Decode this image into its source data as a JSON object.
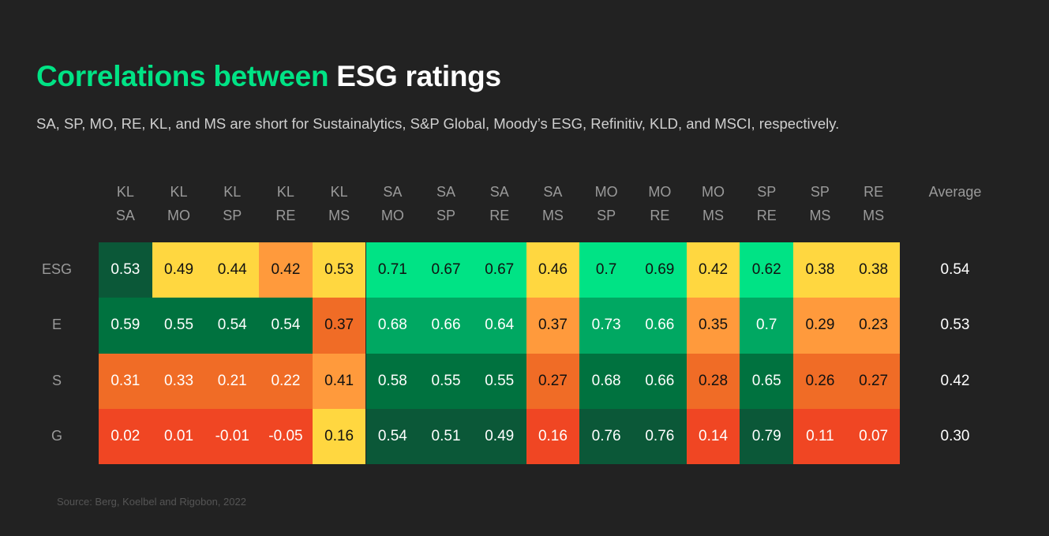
{
  "title": {
    "green_part": "Correlations between",
    "white_part": "ESG ratings"
  },
  "subtitle": "SA, SP, MO, RE, KL, and MS are short for Sustainalytics, S&P Global, Moody’s ESG, Refinitiv, KLD, and MSCI, respectively.",
  "source": "Source: Berg, Koelbel and Rigobon, 2022",
  "colors": {
    "background": "#222222",
    "accent": "#00e385",
    "dk": "#0b5838",
    "md": "#00723f",
    "gr": "#00a862",
    "br": "#00e385",
    "y": "#ffd740",
    "lo": "#ff9a3c",
    "or": "#f06c26",
    "red": "#f04623"
  },
  "chart_data": {
    "type": "heatmap",
    "title": "Correlations between ESG ratings",
    "columns": [
      [
        "KL",
        "SA"
      ],
      [
        "KL",
        "MO"
      ],
      [
        "KL",
        "SP"
      ],
      [
        "KL",
        "RE"
      ],
      [
        "KL",
        "MS"
      ],
      [
        "SA",
        "MO"
      ],
      [
        "SA",
        "SP"
      ],
      [
        "SA",
        "RE"
      ],
      [
        "SA",
        "MS"
      ],
      [
        "MO",
        "SP"
      ],
      [
        "MO",
        "RE"
      ],
      [
        "MO",
        "MS"
      ],
      [
        "SP",
        "RE"
      ],
      [
        "SP",
        "MS"
      ],
      [
        "RE",
        "MS"
      ]
    ],
    "rows": [
      "ESG",
      "E",
      "S",
      "G"
    ],
    "average_label": "Average",
    "values": [
      [
        "0.53",
        "0.49",
        "0.44",
        "0.42",
        "0.53",
        "0.71",
        "0.67",
        "0.67",
        "0.46",
        "0.7",
        "0.69",
        "0.42",
        "0.62",
        "0.38",
        "0.38"
      ],
      [
        "0.59",
        "0.55",
        "0.54",
        "0.54",
        "0.37",
        "0.68",
        "0.66",
        "0.64",
        "0.37",
        "0.73",
        "0.66",
        "0.35",
        "0.7",
        "0.29",
        "0.23"
      ],
      [
        "0.31",
        "0.33",
        "0.21",
        "0.22",
        "0.41",
        "0.58",
        "0.55",
        "0.55",
        "0.27",
        "0.68",
        "0.66",
        "0.28",
        "0.65",
        "0.26",
        "0.27"
      ],
      [
        "0.02",
        "0.01",
        "-0.01",
        "-0.05",
        "0.16",
        "0.54",
        "0.51",
        "0.49",
        "0.16",
        "0.76",
        "0.76",
        "0.14",
        "0.79",
        "0.11",
        "0.07"
      ]
    ],
    "averages": [
      "0.54",
      "0.53",
      "0.42",
      "0.30"
    ],
    "cell_colors": [
      [
        "dk",
        "y",
        "y",
        "lo",
        "y",
        "br",
        "br",
        "br",
        "y",
        "br",
        "br",
        "y",
        "br",
        "y",
        "y"
      ],
      [
        "md",
        "md",
        "md",
        "md",
        "or",
        "gr",
        "gr",
        "gr",
        "lo",
        "gr",
        "gr",
        "lo",
        "gr",
        "lo",
        "lo"
      ],
      [
        "or",
        "or",
        "or",
        "or",
        "lo",
        "md",
        "md",
        "md",
        "or",
        "md",
        "md",
        "or",
        "md",
        "or",
        "or"
      ],
      [
        "red",
        "red",
        "red",
        "red",
        "y",
        "dk",
        "dk",
        "dk",
        "red",
        "dk",
        "dk",
        "red",
        "dk",
        "red",
        "red"
      ]
    ],
    "text_colors": [
      [
        "w",
        "k",
        "k",
        "k",
        "k",
        "k",
        "k",
        "k",
        "k",
        "k",
        "k",
        "k",
        "k",
        "k",
        "k"
      ],
      [
        "w",
        "w",
        "w",
        "w",
        "k",
        "w",
        "w",
        "w",
        "k",
        "w",
        "w",
        "k",
        "w",
        "k",
        "k"
      ],
      [
        "w",
        "w",
        "w",
        "w",
        "k",
        "w",
        "w",
        "w",
        "k",
        "w",
        "w",
        "k",
        "w",
        "k",
        "k"
      ],
      [
        "w",
        "w",
        "w",
        "w",
        "k",
        "w",
        "w",
        "w",
        "w",
        "w",
        "w",
        "w",
        "w",
        "w",
        "w"
      ]
    ]
  }
}
